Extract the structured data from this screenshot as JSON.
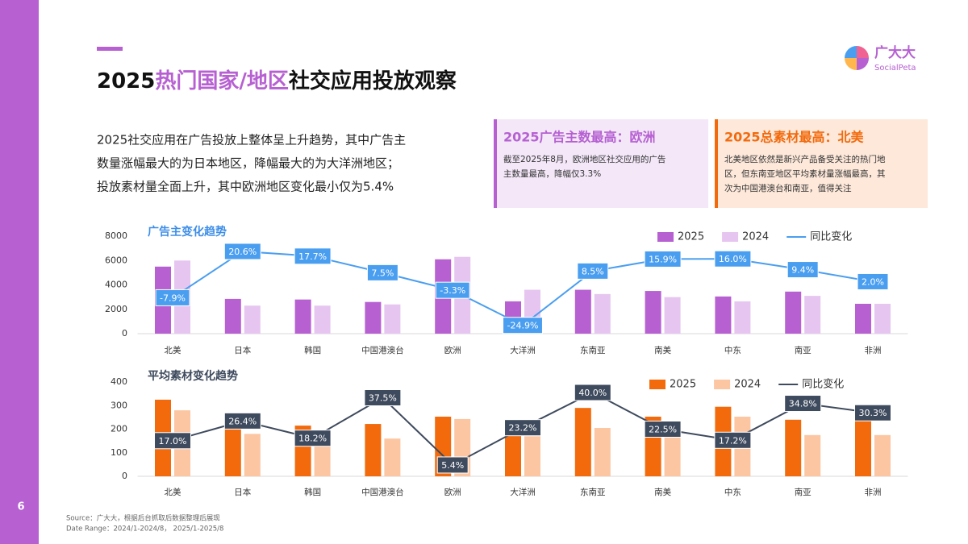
{
  "header": {
    "title": [
      "2025",
      "热门国家/地区",
      "社交应用投放观察"
    ],
    "logo_name": "广大大",
    "logo_sub": "SocialPeta",
    "page_number": "6"
  },
  "intro": [
    "2025社交应用在广告投放上整体呈上升趋势，其中广告主",
    "数量涨幅最大的为日本地区，降幅最大的为大洋洲地区；",
    "投放素材量全面上升，其中欧洲地区变化最小仅为5.4%"
  ],
  "boxes": [
    {
      "title": "2025广告主数最高：欧洲",
      "body": [
        "截至2025年8月，欧洲地区社交应用的广告",
        "主数量最高，降幅仅3.3%"
      ]
    },
    {
      "title": "2025总素材最高：北美",
      "body": [
        "北美地区依然是新兴产品备受关注的热门地",
        "区，但东南亚地区平均素材量涨幅最高，其",
        "次为中国港澳台和南亚，值得关注"
      ]
    }
  ],
  "footer": [
    "Source：广大大，根据后台抓取后数据整理后展现",
    "Date Range：2024/1-2024/8， 2025/1-2025/8"
  ],
  "chart_data": [
    {
      "type": "combo",
      "title": "广告主变化趋势",
      "title_color": "#3d8ee8",
      "categories": [
        "北美",
        "日本",
        "韩国",
        "中国港澳台",
        "欧洲",
        "大洋洲",
        "东南亚",
        "南美",
        "中东",
        "南亚",
        "非洲"
      ],
      "ylim": [
        0,
        8000
      ],
      "yticks": [
        0,
        2000,
        4000,
        6000,
        8000
      ],
      "y2lim": [
        -30,
        30
      ],
      "grid": false,
      "series": [
        {
          "name": "2025",
          "type": "bar",
          "color": "#b660d2",
          "values": [
            5500,
            2850,
            2800,
            2600,
            6100,
            2650,
            3600,
            3500,
            3050,
            3450,
            2450
          ]
        },
        {
          "name": "2024",
          "type": "bar",
          "color": "#e6c6f0",
          "values": [
            6000,
            2300,
            2300,
            2400,
            6300,
            3600,
            3250,
            3000,
            2650,
            3100,
            2450
          ]
        },
        {
          "name": "同比变化",
          "type": "line",
          "axis": "y2",
          "color": "#4a9ef0",
          "values": [
            -7.9,
            20.6,
            17.7,
            7.5,
            -3.3,
            -24.9,
            8.5,
            15.9,
            16.0,
            9.4,
            2.0
          ],
          "value_labels": [
            "-7.9%",
            "20.6%",
            "17.7%",
            "7.5%",
            "-3.3%",
            "-24.9%",
            "8.5%",
            "15.9%",
            "16.0%",
            "9.4%",
            "2.0%"
          ]
        }
      ]
    },
    {
      "type": "combo",
      "title": "平均素材变化趋势",
      "title_color": "#3e4a5d",
      "categories": [
        "北美",
        "日本",
        "韩国",
        "中国港澳台",
        "欧洲",
        "大洋洲",
        "东南亚",
        "南美",
        "中东",
        "南亚",
        "非洲"
      ],
      "ylim": [
        0,
        400
      ],
      "yticks": [
        0,
        100,
        200,
        300,
        400
      ],
      "y2lim": [
        0,
        45
      ],
      "grid": false,
      "series": [
        {
          "name": "2025",
          "type": "bar",
          "color": "#f26a0c",
          "values": [
            325,
            220,
            215,
            222,
            253,
            190,
            290,
            253,
            295,
            240,
            243
          ]
        },
        {
          "name": "2024",
          "type": "bar",
          "color": "#fcc6a2",
          "values": [
            280,
            180,
            175,
            160,
            243,
            170,
            205,
            175,
            253,
            175,
            175
          ]
        },
        {
          "name": "同比变化",
          "type": "line",
          "axis": "y2",
          "color": "#3e4a5d",
          "values": [
            17.0,
            26.4,
            18.2,
            37.5,
            5.4,
            23.2,
            40.0,
            22.5,
            17.2,
            34.8,
            30.3
          ],
          "value_labels": [
            "17.0%",
            "26.4%",
            "18.2%",
            "37.5%",
            "5.4%",
            "23.2%",
            "40.0%",
            "22.5%",
            "17.2%",
            "34.8%",
            "30.3%"
          ]
        }
      ]
    }
  ]
}
